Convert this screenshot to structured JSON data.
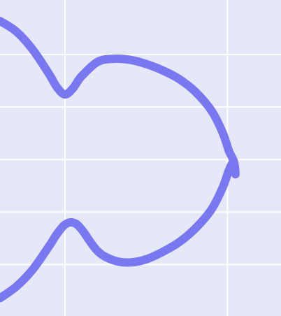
{
  "chart_data": {
    "type": "line",
    "title": "",
    "xlabel": "",
    "ylabel": "",
    "grid": true,
    "xlim": [
      -0.4,
      1.33
    ],
    "ylim": [
      -1.49,
      1.52
    ],
    "x_gridlines": [
      0,
      1
    ],
    "y_gridlines": [
      -1,
      -0.5,
      0,
      0.5,
      1
    ],
    "series": [
      {
        "color": "#7a78f0",
        "points": [
          [
            -0.4,
            1.32
          ],
          [
            -0.3,
            1.22
          ],
          [
            -0.2,
            1.05
          ],
          [
            -0.1,
            0.82
          ],
          [
            -0.05,
            0.69
          ],
          [
            0,
            0.62
          ],
          [
            0.05,
            0.68
          ],
          [
            0.1,
            0.79
          ],
          [
            0.2,
            0.93
          ],
          [
            0.3,
            0.96
          ],
          [
            0.4,
            0.95
          ],
          [
            0.5,
            0.91
          ],
          [
            0.6,
            0.85
          ],
          [
            0.7,
            0.77
          ],
          [
            0.8,
            0.65
          ],
          [
            0.9,
            0.47
          ],
          [
            0.97,
            0.26
          ],
          [
            1.01,
            0.08
          ],
          [
            1.04,
            -0.02
          ],
          [
            1.05,
            -0.14
          ],
          [
            1.04,
            -0.02
          ],
          [
            1.01,
            -0.1
          ],
          [
            0.97,
            -0.27
          ],
          [
            0.9,
            -0.48
          ],
          [
            0.8,
            -0.66
          ],
          [
            0.7,
            -0.79
          ],
          [
            0.6,
            -0.88
          ],
          [
            0.5,
            -0.95
          ],
          [
            0.4,
            -0.98
          ],
          [
            0.3,
            -0.96
          ],
          [
            0.2,
            -0.87
          ],
          [
            0.1,
            -0.66
          ],
          [
            0.05,
            -0.6
          ],
          [
            0,
            -0.62
          ],
          [
            -0.05,
            -0.71
          ],
          [
            -0.1,
            -0.83
          ],
          [
            -0.2,
            -1.05
          ],
          [
            -0.3,
            -1.21
          ],
          [
            -0.4,
            -1.32
          ]
        ]
      }
    ]
  }
}
